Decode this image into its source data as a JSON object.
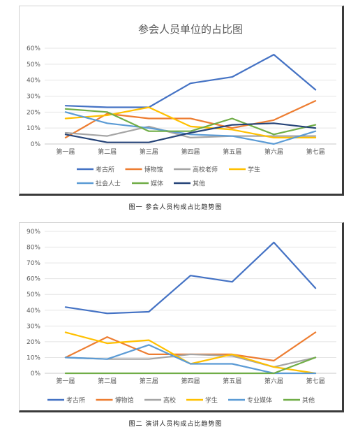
{
  "chart_data": [
    {
      "type": "line",
      "title": "参会人员单位的占比图",
      "categories": [
        "第一届",
        "第二届",
        "第三届",
        "第四届",
        "第五届",
        "第六届",
        "第七届"
      ],
      "yticks": [
        "0%",
        "10%",
        "20%",
        "30%",
        "40%",
        "50%",
        "60%"
      ],
      "ylim": [
        0,
        60
      ],
      "grid": true,
      "legend_position": "bottom",
      "series": [
        {
          "name": "考古所",
          "color": "#4472C4",
          "values": [
            24,
            23,
            23,
            38,
            42,
            56,
            34
          ]
        },
        {
          "name": "博物馆",
          "color": "#ED7D31",
          "values": [
            4,
            19,
            16,
            16,
            10,
            15,
            27
          ]
        },
        {
          "name": "高校老师",
          "color": "#A5A5A5",
          "values": [
            7,
            5,
            11,
            4,
            5,
            5,
            5
          ]
        },
        {
          "name": "学生",
          "color": "#FFC000",
          "values": [
            16,
            18,
            23,
            11,
            9,
            4,
            4
          ]
        },
        {
          "name": "社会人士",
          "color": "#5B9BD5",
          "values": [
            20,
            13,
            10,
            6,
            5,
            0,
            8
          ]
        },
        {
          "name": "媒体",
          "color": "#70AD47",
          "values": [
            22,
            20,
            8,
            8,
            16,
            6,
            12
          ]
        },
        {
          "name": "其他",
          "color": "#264478",
          "values": [
            6,
            1,
            1,
            7,
            12,
            13,
            10
          ]
        }
      ]
    },
    {
      "type": "line",
      "title": "",
      "categories": [
        "第一届",
        "第二届",
        "第三届",
        "第四届",
        "第五届",
        "第六届",
        "第七届"
      ],
      "yticks": [
        "0%",
        "10%",
        "20%",
        "30%",
        "40%",
        "50%",
        "60%",
        "70%",
        "80%",
        "90%"
      ],
      "ylim": [
        0,
        90
      ],
      "grid": true,
      "legend_position": "bottom",
      "series": [
        {
          "name": "考古所",
          "color": "#4472C4",
          "values": [
            42,
            38,
            39,
            62,
            58,
            83,
            54
          ]
        },
        {
          "name": "博物馆",
          "color": "#ED7D31",
          "values": [
            10,
            23,
            12,
            12,
            12,
            8,
            26
          ]
        },
        {
          "name": "高校",
          "color": "#A5A5A5",
          "values": [
            10,
            9,
            9,
            12,
            11,
            4,
            10
          ]
        },
        {
          "name": "学生",
          "color": "#FFC000",
          "values": [
            26,
            19,
            21,
            6,
            12,
            4,
            0
          ]
        },
        {
          "name": "专业媒体",
          "color": "#5B9BD5",
          "values": [
            10,
            9,
            18,
            6,
            6,
            0,
            0
          ]
        },
        {
          "name": "其他",
          "color": "#70AD47",
          "values": [
            0,
            0,
            0,
            0,
            0,
            0,
            10
          ]
        }
      ]
    }
  ],
  "captions": {
    "fig1": "图一  参会人员构成占比趋势图",
    "fig2": "图二  演讲人员构成占比趋势图"
  }
}
